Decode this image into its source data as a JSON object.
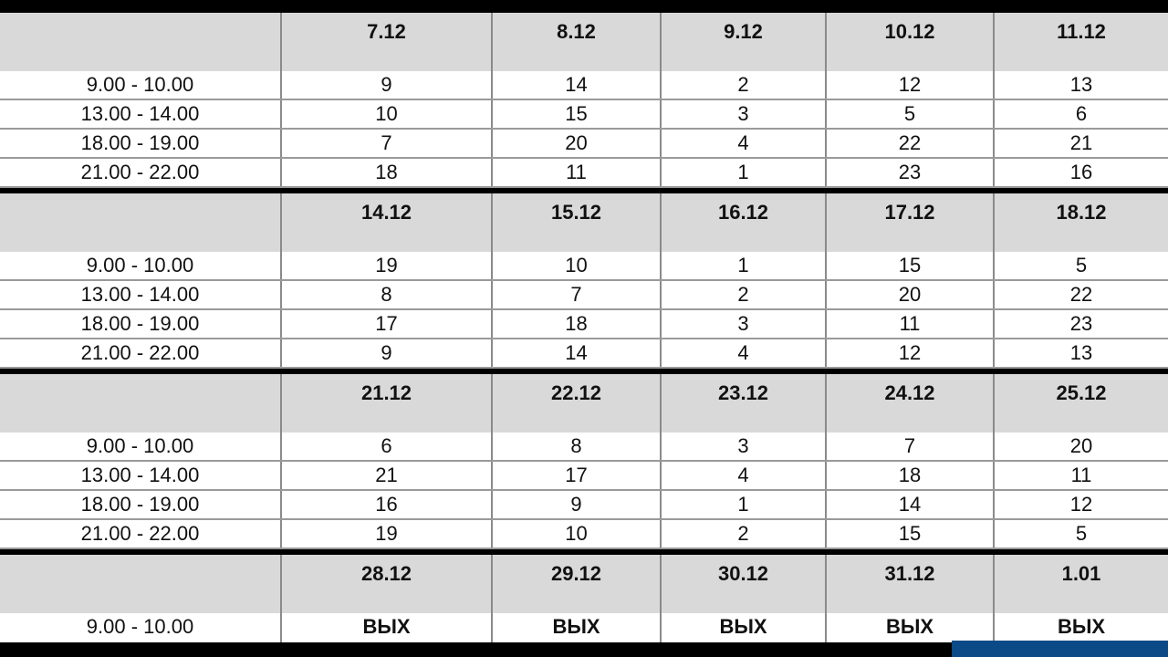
{
  "colors": {
    "header_bg": "#d9d9d9",
    "separator": "#000000",
    "taskbar_accent": "#0b4a86"
  },
  "blocks": [
    {
      "dates": [
        "7.12",
        "8.12",
        "9.12",
        "10.12",
        "11.12"
      ],
      "rows": [
        {
          "time": "9.00 - 10.00",
          "values": [
            "9",
            "14",
            "2",
            "12",
            "13"
          ]
        },
        {
          "time": "13.00 - 14.00",
          "values": [
            "10",
            "15",
            "3",
            "5",
            "6"
          ]
        },
        {
          "time": "18.00 - 19.00",
          "values": [
            "7",
            "20",
            "4",
            "22",
            "21"
          ]
        },
        {
          "time": "21.00 - 22.00",
          "values": [
            "18",
            "11",
            "1",
            "23",
            "16"
          ]
        }
      ]
    },
    {
      "dates": [
        "14.12",
        "15.12",
        "16.12",
        "17.12",
        "18.12"
      ],
      "rows": [
        {
          "time": "9.00 - 10.00",
          "values": [
            "19",
            "10",
            "1",
            "15",
            "5"
          ]
        },
        {
          "time": "13.00 - 14.00",
          "values": [
            "8",
            "7",
            "2",
            "20",
            "22"
          ]
        },
        {
          "time": "18.00 - 19.00",
          "values": [
            "17",
            "18",
            "3",
            "11",
            "23"
          ]
        },
        {
          "time": "21.00 - 22.00",
          "values": [
            "9",
            "14",
            "4",
            "12",
            "13"
          ]
        }
      ]
    },
    {
      "dates": [
        "21.12",
        "22.12",
        "23.12",
        "24.12",
        "25.12"
      ],
      "rows": [
        {
          "time": "9.00 - 10.00",
          "values": [
            "6",
            "8",
            "3",
            "7",
            "20"
          ]
        },
        {
          "time": "13.00 - 14.00",
          "values": [
            "21",
            "17",
            "4",
            "18",
            "11"
          ]
        },
        {
          "time": "18.00 - 19.00",
          "values": [
            "16",
            "9",
            "1",
            "14",
            "12"
          ]
        },
        {
          "time": "21.00 - 22.00",
          "values": [
            "19",
            "10",
            "2",
            "15",
            "5"
          ]
        }
      ]
    },
    {
      "dates": [
        "28.12",
        "29.12",
        "30.12",
        "31.12",
        "1.01"
      ],
      "rows": [
        {
          "time": "9.00 - 10.00",
          "values": [
            "ВЫХ",
            "ВЫХ",
            "ВЫХ",
            "ВЫХ",
            "ВЫХ"
          ]
        }
      ]
    }
  ]
}
